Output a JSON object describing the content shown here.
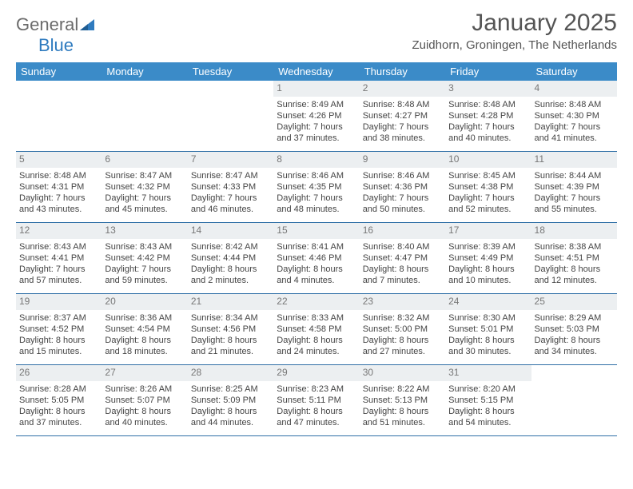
{
  "logo": {
    "general": "General",
    "blue": "Blue"
  },
  "title": "January 2025",
  "location": "Zuidhorn, Groningen, The Netherlands",
  "colors": {
    "header_bg": "#3b8bc8",
    "header_text": "#ffffff",
    "daynum_bg": "#eceff1",
    "daynum_text": "#777777",
    "week_border": "#2f6fa6",
    "logo_gray": "#6b6b6b",
    "logo_blue": "#2f7bbf"
  },
  "dow": [
    "Sunday",
    "Monday",
    "Tuesday",
    "Wednesday",
    "Thursday",
    "Friday",
    "Saturday"
  ],
  "weeks": [
    [
      {
        "n": "",
        "sr": "",
        "ss": "",
        "dl": ""
      },
      {
        "n": "",
        "sr": "",
        "ss": "",
        "dl": ""
      },
      {
        "n": "",
        "sr": "",
        "ss": "",
        "dl": ""
      },
      {
        "n": "1",
        "sr": "8:49 AM",
        "ss": "4:26 PM",
        "dl": "7 hours and 37 minutes."
      },
      {
        "n": "2",
        "sr": "8:48 AM",
        "ss": "4:27 PM",
        "dl": "7 hours and 38 minutes."
      },
      {
        "n": "3",
        "sr": "8:48 AM",
        "ss": "4:28 PM",
        "dl": "7 hours and 40 minutes."
      },
      {
        "n": "4",
        "sr": "8:48 AM",
        "ss": "4:30 PM",
        "dl": "7 hours and 41 minutes."
      }
    ],
    [
      {
        "n": "5",
        "sr": "8:48 AM",
        "ss": "4:31 PM",
        "dl": "7 hours and 43 minutes."
      },
      {
        "n": "6",
        "sr": "8:47 AM",
        "ss": "4:32 PM",
        "dl": "7 hours and 45 minutes."
      },
      {
        "n": "7",
        "sr": "8:47 AM",
        "ss": "4:33 PM",
        "dl": "7 hours and 46 minutes."
      },
      {
        "n": "8",
        "sr": "8:46 AM",
        "ss": "4:35 PM",
        "dl": "7 hours and 48 minutes."
      },
      {
        "n": "9",
        "sr": "8:46 AM",
        "ss": "4:36 PM",
        "dl": "7 hours and 50 minutes."
      },
      {
        "n": "10",
        "sr": "8:45 AM",
        "ss": "4:38 PM",
        "dl": "7 hours and 52 minutes."
      },
      {
        "n": "11",
        "sr": "8:44 AM",
        "ss": "4:39 PM",
        "dl": "7 hours and 55 minutes."
      }
    ],
    [
      {
        "n": "12",
        "sr": "8:43 AM",
        "ss": "4:41 PM",
        "dl": "7 hours and 57 minutes."
      },
      {
        "n": "13",
        "sr": "8:43 AM",
        "ss": "4:42 PM",
        "dl": "7 hours and 59 minutes."
      },
      {
        "n": "14",
        "sr": "8:42 AM",
        "ss": "4:44 PM",
        "dl": "8 hours and 2 minutes."
      },
      {
        "n": "15",
        "sr": "8:41 AM",
        "ss": "4:46 PM",
        "dl": "8 hours and 4 minutes."
      },
      {
        "n": "16",
        "sr": "8:40 AM",
        "ss": "4:47 PM",
        "dl": "8 hours and 7 minutes."
      },
      {
        "n": "17",
        "sr": "8:39 AM",
        "ss": "4:49 PM",
        "dl": "8 hours and 10 minutes."
      },
      {
        "n": "18",
        "sr": "8:38 AM",
        "ss": "4:51 PM",
        "dl": "8 hours and 12 minutes."
      }
    ],
    [
      {
        "n": "19",
        "sr": "8:37 AM",
        "ss": "4:52 PM",
        "dl": "8 hours and 15 minutes."
      },
      {
        "n": "20",
        "sr": "8:36 AM",
        "ss": "4:54 PM",
        "dl": "8 hours and 18 minutes."
      },
      {
        "n": "21",
        "sr": "8:34 AM",
        "ss": "4:56 PM",
        "dl": "8 hours and 21 minutes."
      },
      {
        "n": "22",
        "sr": "8:33 AM",
        "ss": "4:58 PM",
        "dl": "8 hours and 24 minutes."
      },
      {
        "n": "23",
        "sr": "8:32 AM",
        "ss": "5:00 PM",
        "dl": "8 hours and 27 minutes."
      },
      {
        "n": "24",
        "sr": "8:30 AM",
        "ss": "5:01 PM",
        "dl": "8 hours and 30 minutes."
      },
      {
        "n": "25",
        "sr": "8:29 AM",
        "ss": "5:03 PM",
        "dl": "8 hours and 34 minutes."
      }
    ],
    [
      {
        "n": "26",
        "sr": "8:28 AM",
        "ss": "5:05 PM",
        "dl": "8 hours and 37 minutes."
      },
      {
        "n": "27",
        "sr": "8:26 AM",
        "ss": "5:07 PM",
        "dl": "8 hours and 40 minutes."
      },
      {
        "n": "28",
        "sr": "8:25 AM",
        "ss": "5:09 PM",
        "dl": "8 hours and 44 minutes."
      },
      {
        "n": "29",
        "sr": "8:23 AM",
        "ss": "5:11 PM",
        "dl": "8 hours and 47 minutes."
      },
      {
        "n": "30",
        "sr": "8:22 AM",
        "ss": "5:13 PM",
        "dl": "8 hours and 51 minutes."
      },
      {
        "n": "31",
        "sr": "8:20 AM",
        "ss": "5:15 PM",
        "dl": "8 hours and 54 minutes."
      },
      {
        "n": "",
        "sr": "",
        "ss": "",
        "dl": ""
      }
    ]
  ],
  "labels": {
    "sunrise": "Sunrise: ",
    "sunset": "Sunset: ",
    "daylight": "Daylight: "
  }
}
